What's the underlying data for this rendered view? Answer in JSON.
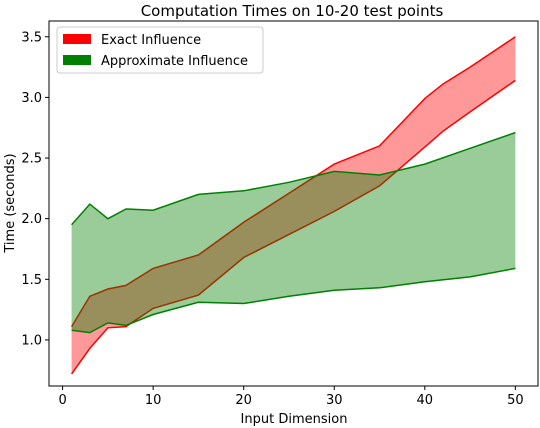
{
  "chart_data": {
    "type": "area",
    "title": "Computation Times on 10-20 test points",
    "xlabel": "Input Dimension",
    "ylabel": "Time (seconds)",
    "xlim": [
      -1.5,
      52.5
    ],
    "ylim": [
      0.62,
      3.63
    ],
    "xticks": [
      0,
      10,
      20,
      30,
      40,
      50
    ],
    "yticks": [
      1.0,
      1.5,
      2.0,
      2.5,
      3.0,
      3.5
    ],
    "xtick_labels": [
      "0",
      "10",
      "20",
      "30",
      "40",
      "50"
    ],
    "ytick_labels": [
      "1.0",
      "1.5",
      "2.0",
      "2.5",
      "3.0",
      "3.5"
    ],
    "legend_position": "top-left",
    "grid": false,
    "series": [
      {
        "name": "Exact Influence",
        "color": "#ff0000",
        "fill_alpha": 0.4,
        "x": [
          1,
          3,
          5,
          7,
          10,
          15,
          20,
          25,
          30,
          35,
          40,
          42,
          45,
          50
        ],
        "lower": [
          0.72,
          0.93,
          1.1,
          1.11,
          1.26,
          1.37,
          1.68,
          1.87,
          2.06,
          2.27,
          2.59,
          2.72,
          2.88,
          3.14
        ],
        "upper": [
          1.11,
          1.36,
          1.42,
          1.45,
          1.59,
          1.7,
          1.97,
          2.21,
          2.45,
          2.6,
          2.99,
          3.11,
          3.25,
          3.5
        ]
      },
      {
        "name": "Approximate Influence",
        "color": "#008000",
        "fill_alpha": 0.4,
        "x": [
          1,
          3,
          5,
          7,
          10,
          15,
          20,
          25,
          30,
          35,
          40,
          45,
          50
        ],
        "lower": [
          1.08,
          1.06,
          1.14,
          1.12,
          1.21,
          1.31,
          1.3,
          1.36,
          1.41,
          1.43,
          1.48,
          1.52,
          1.59
        ],
        "upper": [
          1.95,
          2.12,
          2.0,
          2.08,
          2.07,
          2.2,
          2.23,
          2.3,
          2.39,
          2.36,
          2.45,
          2.58,
          2.71
        ]
      }
    ]
  }
}
